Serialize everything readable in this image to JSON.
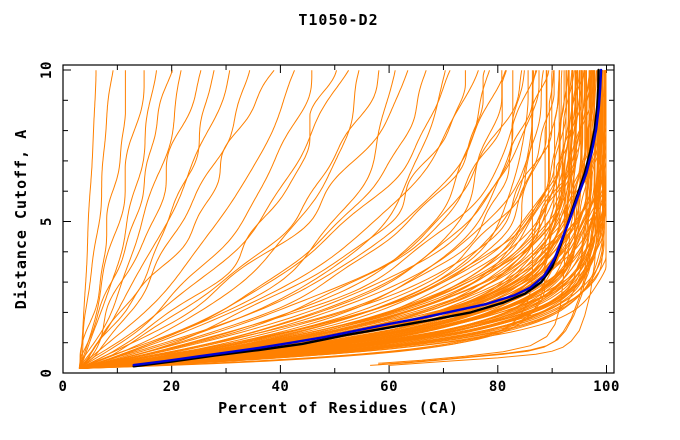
{
  "chart_data": {
    "type": "line",
    "title": "T1050-D2",
    "xlabel": "Percent of Residues (CA)",
    "ylabel": "Distance Cutoff, A",
    "xlim": [
      0,
      100
    ],
    "ylim": [
      0,
      10
    ],
    "x_major_ticks": [
      0,
      20,
      40,
      60,
      80,
      100
    ],
    "x_minor_tick_step": 10,
    "y_major_ticks": [
      0,
      5,
      10
    ],
    "y_minor_tick_step": 1,
    "grid": false,
    "legend_position": "none",
    "colors": {
      "predictions": "#ff8000",
      "highlight_blue": "#0000d6",
      "highlight_black": "#000000",
      "frame": "#000000",
      "background": "#ffffff",
      "text": "#000000"
    },
    "curve_model": "x(y) = x0 + (xmax - x0) * (1 - exp(-(y - y0)/tau)) / (1 - exp(-(10 - y0)/tau))",
    "curve_start": {
      "x": 3,
      "y": 0.15
    },
    "prediction_curves": {
      "color": "#ff8000",
      "params_xmax_tau": [
        [
          6,
          12
        ],
        [
          9,
          18
        ],
        [
          12,
          10
        ],
        [
          15,
          14
        ],
        [
          17,
          8
        ],
        [
          20,
          16
        ],
        [
          22,
          9
        ],
        [
          25,
          12
        ],
        [
          28,
          7
        ],
        [
          31,
          15
        ],
        [
          34,
          9
        ],
        [
          38,
          12
        ],
        [
          43,
          8
        ],
        [
          46,
          6
        ],
        [
          49,
          4.5
        ],
        [
          52,
          7
        ],
        [
          55,
          3.8
        ],
        [
          58,
          5.5
        ],
        [
          61,
          3.2
        ],
        [
          64,
          6.5
        ],
        [
          67,
          4.2
        ],
        [
          70,
          3
        ],
        [
          72,
          5
        ],
        [
          74,
          3.6
        ],
        [
          76,
          4.4
        ],
        [
          78,
          2.6
        ],
        [
          79,
          3.4
        ],
        [
          80,
          2.2
        ],
        [
          81,
          4
        ],
        [
          82,
          2.9
        ],
        [
          83,
          2
        ],
        [
          84,
          3.3
        ],
        [
          85,
          2.5
        ],
        [
          85.5,
          1.8
        ],
        [
          86,
          3
        ],
        [
          86.5,
          2.3
        ],
        [
          87,
          1.9
        ],
        [
          87.5,
          2.8
        ],
        [
          88,
          2.1
        ],
        [
          88.5,
          1.7
        ],
        [
          89,
          2.5
        ],
        [
          89.5,
          2
        ],
        [
          90,
          1.6
        ],
        [
          90.5,
          2.3
        ],
        [
          91,
          1.8
        ],
        [
          91.5,
          1.5
        ],
        [
          92,
          2
        ],
        [
          92,
          1.2
        ],
        [
          92.5,
          1.7
        ],
        [
          93,
          1
        ],
        [
          93,
          2.1
        ],
        [
          93.5,
          1.4
        ],
        [
          93.5,
          1.9
        ],
        [
          94,
          1.1
        ],
        [
          94,
          1.6
        ],
        [
          94.5,
          2
        ],
        [
          94.5,
          1.3
        ],
        [
          95,
          0.95
        ],
        [
          95,
          1.5
        ],
        [
          95,
          1.9
        ],
        [
          95.5,
          1.2
        ],
        [
          95.5,
          1.7
        ],
        [
          96,
          1
        ],
        [
          96,
          1.45
        ],
        [
          96,
          1.9
        ],
        [
          96.5,
          1.15
        ],
        [
          96.5,
          1.6
        ],
        [
          97,
          0.9
        ],
        [
          97,
          1.3
        ],
        [
          97,
          1.75
        ],
        [
          92.5,
          1.05
        ],
        [
          93.8,
          1.25
        ],
        [
          94.2,
          1.85
        ],
        [
          95.2,
          1.05
        ],
        [
          95.8,
          1.55
        ],
        [
          96.2,
          1.25
        ],
        [
          96.8,
          1.45
        ],
        [
          91.8,
          1.1
        ],
        [
          92.2,
          1.55
        ],
        [
          93.2,
          1.65
        ],
        [
          94.8,
          1.75
        ],
        [
          95.4,
          0.9
        ],
        [
          96.4,
          1.05
        ],
        [
          96.9,
          1.6
        ],
        [
          92.8,
          1.35
        ],
        [
          93.6,
          0.95
        ],
        [
          94.6,
          1.45
        ],
        [
          95.6,
          1.35
        ],
        [
          96.6,
          0.95
        ],
        [
          97,
          1.5
        ],
        [
          97.2,
          1
        ],
        [
          97.4,
          1.3
        ],
        [
          97.6,
          0.85
        ],
        [
          97.8,
          1.15
        ],
        [
          98,
          0.75
        ],
        [
          98,
          1.4
        ],
        [
          98.2,
          1
        ],
        [
          98.4,
          1.25
        ],
        [
          98.5,
          0.8
        ],
        [
          98.6,
          1.1
        ],
        [
          98.8,
          0.9
        ],
        [
          98.8,
          1.35
        ],
        [
          99,
          0.75
        ],
        [
          99,
          1.05
        ],
        [
          99.2,
          0.9
        ],
        [
          99.2,
          1.2
        ],
        [
          99.4,
          0.8
        ],
        [
          99.4,
          1
        ],
        [
          99.5,
          1.3
        ],
        [
          99.6,
          0.9
        ],
        [
          99.6,
          0.7
        ],
        [
          99.7,
          1.1
        ],
        [
          99.8,
          0.85
        ],
        [
          99.8,
          1
        ],
        [
          99.9,
          0.75
        ],
        [
          97.3,
          1.5
        ],
        [
          97.7,
          1.35
        ],
        [
          98.1,
          1.5
        ],
        [
          98.3,
          0.9
        ],
        [
          98.7,
          1.2
        ],
        [
          98.9,
          1
        ],
        [
          99.1,
          0.85
        ],
        [
          99.3,
          1.1
        ],
        [
          99.5,
          0.95
        ],
        [
          99.7,
          0.8
        ],
        [
          97.5,
          1.1
        ],
        [
          98.5,
          1.45
        ],
        [
          99,
          1.3
        ],
        [
          99.6,
          1.15
        ],
        [
          99.9,
          0.95
        ],
        [
          88,
          0.5
        ],
        [
          90,
          0.55
        ],
        [
          86,
          0.45
        ]
      ]
    },
    "outlier_curves": {
      "color": "#ff8000",
      "curves": [
        [
          [
            58,
            0.28
          ],
          [
            64,
            0.36
          ],
          [
            70,
            0.45
          ],
          [
            76,
            0.55
          ],
          [
            82,
            0.66
          ],
          [
            86,
            0.76
          ],
          [
            89,
            0.9
          ],
          [
            91,
            1.1
          ],
          [
            92.5,
            1.4
          ],
          [
            94,
            1.9
          ],
          [
            95.5,
            2.6
          ],
          [
            96.5,
            3.4
          ],
          [
            97.3,
            4.4
          ],
          [
            98,
            5.6
          ],
          [
            98.6,
            7.2
          ],
          [
            99,
            9
          ],
          [
            99.2,
            10
          ]
        ],
        [
          [
            56.5,
            0.25
          ],
          [
            63,
            0.33
          ],
          [
            69,
            0.42
          ],
          [
            75,
            0.52
          ],
          [
            81,
            0.62
          ],
          [
            85.5,
            0.72
          ],
          [
            88.5,
            0.85
          ],
          [
            90.5,
            1.05
          ],
          [
            92,
            1.35
          ],
          [
            93.5,
            1.8
          ],
          [
            95,
            2.5
          ],
          [
            96.2,
            3.3
          ],
          [
            97,
            4.3
          ],
          [
            97.8,
            5.5
          ],
          [
            98.4,
            7
          ],
          [
            98.8,
            8.8
          ],
          [
            99,
            10
          ]
        ],
        [
          [
            60,
            0.25
          ],
          [
            70,
            0.38
          ],
          [
            80,
            0.5
          ],
          [
            87,
            0.62
          ],
          [
            90,
            0.72
          ],
          [
            92,
            0.85
          ],
          [
            93.5,
            1.05
          ],
          [
            95,
            1.4
          ],
          [
            96,
            1.9
          ],
          [
            97,
            2.6
          ],
          [
            97.8,
            3.6
          ],
          [
            98.4,
            5
          ],
          [
            99,
            7
          ],
          [
            99.3,
            10
          ]
        ],
        [
          [
            58,
            0.32
          ],
          [
            66,
            0.42
          ],
          [
            74,
            0.55
          ],
          [
            81,
            0.7
          ],
          [
            86,
            0.9
          ],
          [
            89,
            1.2
          ],
          [
            90.5,
            1.6
          ],
          [
            91.5,
            2.2
          ],
          [
            92,
            3
          ],
          [
            92.5,
            4.2
          ],
          [
            93,
            5.8
          ],
          [
            93.5,
            8
          ],
          [
            93.7,
            10
          ]
        ]
      ]
    },
    "highlight_curves": [
      {
        "name": "model-black",
        "color": "#000000",
        "points": [
          [
            13,
            0.22
          ],
          [
            20,
            0.38
          ],
          [
            28,
            0.58
          ],
          [
            36,
            0.76
          ],
          [
            44,
            0.96
          ],
          [
            52,
            1.25
          ],
          [
            60,
            1.5
          ],
          [
            68,
            1.76
          ],
          [
            75,
            2
          ],
          [
            81,
            2.32
          ],
          [
            85,
            2.62
          ],
          [
            88,
            3
          ],
          [
            90,
            3.5
          ],
          [
            91.5,
            4.2
          ],
          [
            93,
            5
          ],
          [
            94.5,
            5.8
          ],
          [
            96,
            6.6
          ],
          [
            97,
            7.3
          ],
          [
            97.8,
            8
          ],
          [
            98.3,
            8.8
          ],
          [
            98.5,
            9.4
          ],
          [
            98.55,
            10
          ]
        ]
      },
      {
        "name": "model-blue",
        "color": "#0000d6",
        "points": [
          [
            13,
            0.26
          ],
          [
            19,
            0.4
          ],
          [
            25,
            0.55
          ],
          [
            31,
            0.7
          ],
          [
            36,
            0.83
          ],
          [
            42,
            1
          ],
          [
            48,
            1.18
          ],
          [
            54,
            1.4
          ],
          [
            60,
            1.62
          ],
          [
            66,
            1.82
          ],
          [
            72,
            2.05
          ],
          [
            78,
            2.28
          ],
          [
            83,
            2.56
          ],
          [
            86,
            2.82
          ],
          [
            88.5,
            3.2
          ],
          [
            90.5,
            3.8
          ],
          [
            92,
            4.5
          ],
          [
            93.5,
            5.2
          ],
          [
            95,
            5.95
          ],
          [
            96.3,
            6.6
          ],
          [
            97.3,
            7.3
          ],
          [
            98.1,
            8.05
          ],
          [
            98.6,
            8.8
          ],
          [
            98.85,
            9.4
          ],
          [
            99,
            10
          ]
        ]
      }
    ]
  }
}
